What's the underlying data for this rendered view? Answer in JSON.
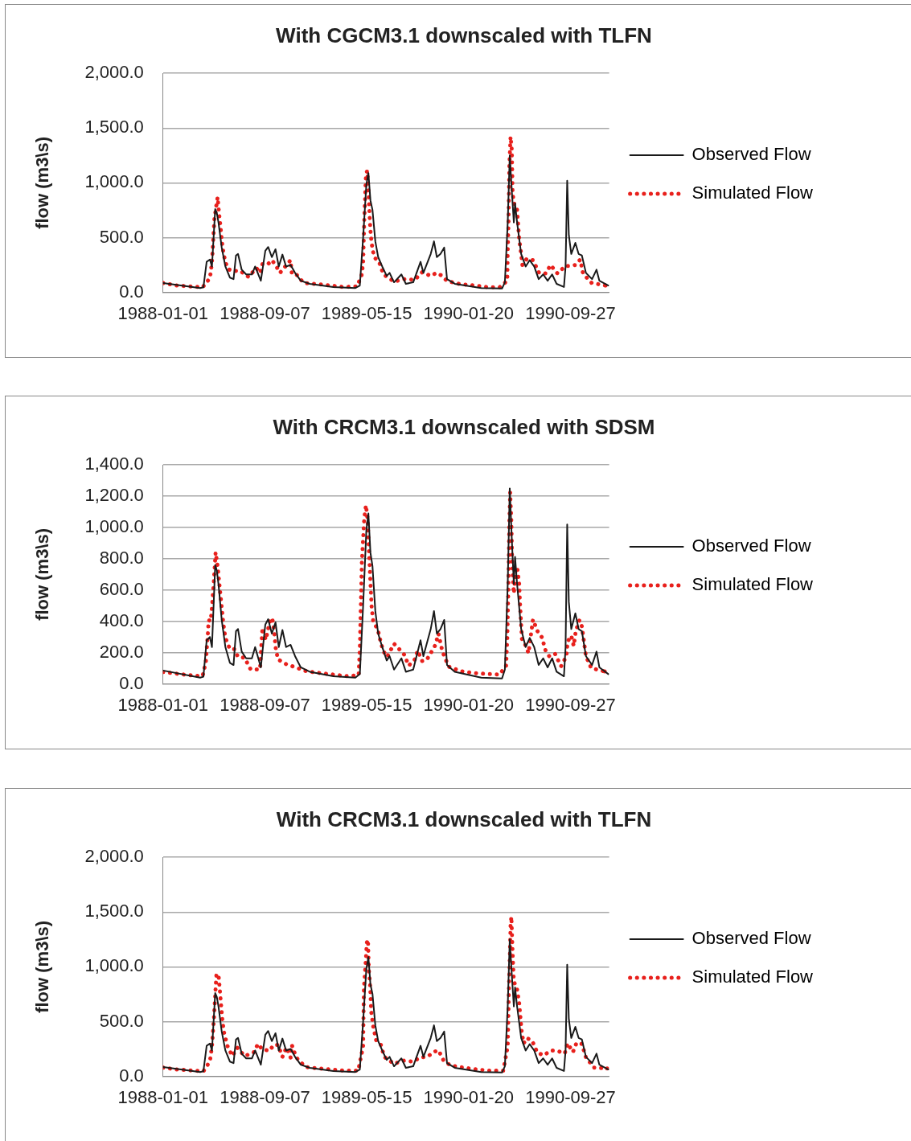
{
  "chart_data": [
    {
      "type": "line",
      "title": "With CGCM3.1 downscaled with TLFN",
      "ylabel": "flow (m3\\s)",
      "xlim": [
        "1988-01-01",
        "1990-12-31"
      ],
      "xticks": [
        "1988-01-01",
        "1988-09-07",
        "1989-05-15",
        "1990-01-20",
        "1990-09-27"
      ],
      "ylim": [
        0,
        2000
      ],
      "yticks": [
        {
          "value": 0,
          "label": "0.0"
        },
        {
          "value": 500,
          "label": "500.0"
        },
        {
          "value": 1000,
          "label": "1,000.0"
        },
        {
          "value": 1500,
          "label": "1,500.0"
        },
        {
          "value": 2000,
          "label": "2,000.0"
        }
      ],
      "grid": "y",
      "legend": "right",
      "marker": "none",
      "series": [
        {
          "name": "Observed Flow",
          "color": "#1a1a1a",
          "line_style": "solid",
          "x": [
            "1988-01-01",
            "1988-04-01",
            "1988-04-09",
            "1988-04-17",
            "1988-04-25",
            "1988-04-30",
            "1988-05-08",
            "1988-05-12",
            "1988-05-16",
            "1988-05-24",
            "1988-06-02",
            "1988-06-13",
            "1988-06-22",
            "1988-06-28",
            "1988-07-03",
            "1988-07-12",
            "1988-07-23",
            "1988-08-06",
            "1988-08-14",
            "1988-08-28",
            "1988-09-08",
            "1988-09-15",
            "1988-09-24",
            "1988-10-03",
            "1988-10-11",
            "1988-10-20",
            "1988-10-29",
            "1988-11-09",
            "1988-11-20",
            "1988-12-04",
            "1988-12-26",
            "1989-02-22",
            "1989-04-17",
            "1989-04-28",
            "1989-05-06",
            "1989-05-14",
            "1989-05-19",
            "1989-05-24",
            "1989-05-29",
            "1989-06-05",
            "1989-06-12",
            "1989-06-22",
            "1989-07-03",
            "1989-07-10",
            "1989-07-21",
            "1989-08-08",
            "1989-08-19",
            "1989-09-06",
            "1989-09-24",
            "1989-10-01",
            "1989-10-19",
            "1989-10-27",
            "1989-11-03",
            "1989-11-12",
            "1989-11-21",
            "1989-11-28",
            "1989-12-17",
            "1990-02-20",
            "1990-04-12",
            "1990-04-19",
            "1990-04-26",
            "1990-05-01",
            "1990-05-06",
            "1990-05-11",
            "1990-05-14",
            "1990-05-19",
            "1990-05-29",
            "1990-06-09",
            "1990-06-19",
            "1990-06-30",
            "1990-07-11",
            "1990-07-22",
            "1990-08-02",
            "1990-08-13",
            "1990-08-24",
            "1990-09-11",
            "1990-09-15",
            "1990-09-19",
            "1990-09-23",
            "1990-09-29",
            "1990-10-09",
            "1990-10-17",
            "1990-10-25",
            "1990-11-04",
            "1990-11-19",
            "1990-11-30",
            "1990-12-07",
            "1990-12-29"
          ],
          "values": [
            86,
            40,
            46,
            279,
            300,
            236,
            760,
            725,
            639,
            409,
            236,
            135,
            121,
            337,
            351,
            207,
            164,
            164,
            236,
            106,
            380,
            414,
            322,
            394,
            236,
            345,
            236,
            250,
            178,
            106,
            78,
            49,
            40,
            63,
            495,
            984,
            1090,
            840,
            754,
            466,
            322,
            236,
            150,
            178,
            92,
            164,
            78,
            92,
            279,
            178,
            351,
            466,
            322,
            351,
            409,
            121,
            78,
            40,
            35,
            92,
            639,
            1250,
            927,
            639,
            812,
            639,
            351,
            236,
            294,
            236,
            121,
            164,
            106,
            164,
            78,
            49,
            236,
            1019,
            524,
            351,
            452,
            351,
            337,
            178,
            121,
            207,
            106,
            63
          ]
        },
        {
          "name": "Simulated Flow",
          "color": "#e8201c",
          "line_style": "dotted",
          "x": [
            "1988-01-01",
            "1988-02-02",
            "1988-03-06",
            "1988-04-07",
            "1988-04-25",
            "1988-04-30",
            "1988-05-06",
            "1988-05-11",
            "1988-05-14",
            "1988-05-17",
            "1988-05-21",
            "1988-05-24",
            "1988-05-29",
            "1988-06-07",
            "1988-06-20",
            "1988-07-07",
            "1988-07-29",
            "1988-08-17",
            "1988-08-26",
            "1988-09-01",
            "1988-09-14",
            "1988-09-24",
            "1988-10-03",
            "1988-10-14",
            "1988-10-27",
            "1988-11-09",
            "1988-11-12",
            "1988-11-21",
            "1988-12-11",
            "1989-01-13",
            "1989-02-15",
            "1989-03-19",
            "1989-04-21",
            "1989-05-02",
            "1989-05-06",
            "1989-05-09",
            "1989-05-13",
            "1989-05-16",
            "1989-05-19",
            "1989-05-22",
            "1989-05-24",
            "1989-05-27",
            "1989-06-02",
            "1989-06-14",
            "1989-06-25",
            "1989-07-21",
            "1989-08-15",
            "1989-09-10",
            "1989-09-28",
            "1989-10-19",
            "1989-11-02",
            "1989-11-14",
            "1989-11-28",
            "1989-12-31",
            "1990-02-02",
            "1990-03-05",
            "1990-04-06",
            "1990-04-25",
            "1990-04-26",
            "1990-04-28",
            "1990-04-30",
            "1990-05-03",
            "1990-05-06",
            "1990-05-08",
            "1990-05-13",
            "1990-05-19",
            "1990-05-24",
            "1990-05-29",
            "1990-06-01",
            "1990-06-12",
            "1990-06-27",
            "1990-07-12",
            "1990-07-29",
            "1990-08-09",
            "1990-08-26",
            "1990-09-15",
            "1990-09-26",
            "1990-10-09",
            "1990-10-21",
            "1990-10-28",
            "1990-11-18",
            "1990-12-22"
          ],
          "values": [
            86,
            63,
            55,
            46,
            130,
            271,
            668,
            797,
            869,
            734,
            601,
            472,
            342,
            216,
            193,
            199,
            141,
            222,
            178,
            259,
            256,
            294,
            250,
            178,
            236,
            294,
            173,
            173,
            86,
            75,
            63,
            49,
            55,
            150,
            265,
            668,
            1071,
            1111,
            941,
            697,
            567,
            446,
            322,
            279,
            164,
            98,
            121,
            115,
            184,
            150,
            178,
            155,
            104,
            75,
            63,
            49,
            46,
            106,
            380,
            639,
            1157,
            1422,
            1301,
            898,
            783,
            754,
            495,
            351,
            250,
            308,
            294,
            178,
            173,
            250,
            173,
            242,
            242,
            250,
            299,
            170,
            86,
            63
          ]
        }
      ]
    },
    {
      "type": "line",
      "title": "With CRCM3.1 downscaled with SDSM",
      "ylabel": "flow (m3\\s)",
      "xlim": [
        "1988-01-01",
        "1990-12-31"
      ],
      "xticks": [
        "1988-01-01",
        "1988-09-07",
        "1989-05-15",
        "1990-01-20",
        "1990-09-27"
      ],
      "ylim": [
        0,
        1400
      ],
      "yticks": [
        {
          "value": 0,
          "label": "0.0"
        },
        {
          "value": 200,
          "label": "200.0"
        },
        {
          "value": 400,
          "label": "400.0"
        },
        {
          "value": 600,
          "label": "600.0"
        },
        {
          "value": 800,
          "label": "800.0"
        },
        {
          "value": 1000,
          "label": "1,000.0"
        },
        {
          "value": 1200,
          "label": "1,200.0"
        },
        {
          "value": 1400,
          "label": "1,400.0"
        }
      ],
      "grid": "y",
      "legend": "right",
      "marker": "none",
      "series": [
        {
          "name": "Observed Flow",
          "color": "#1a1a1a",
          "line_style": "solid",
          "x": [
            "1988-01-01",
            "1988-04-01",
            "1988-04-09",
            "1988-04-17",
            "1988-04-25",
            "1988-04-30",
            "1988-05-08",
            "1988-05-12",
            "1988-05-16",
            "1988-05-24",
            "1988-06-02",
            "1988-06-13",
            "1988-06-22",
            "1988-06-28",
            "1988-07-03",
            "1988-07-12",
            "1988-07-23",
            "1988-08-06",
            "1988-08-14",
            "1988-08-28",
            "1988-09-08",
            "1988-09-15",
            "1988-09-24",
            "1988-10-03",
            "1988-10-11",
            "1988-10-20",
            "1988-10-29",
            "1988-11-09",
            "1988-11-20",
            "1988-12-04",
            "1988-12-26",
            "1989-02-22",
            "1989-04-17",
            "1989-04-28",
            "1989-05-06",
            "1989-05-14",
            "1989-05-19",
            "1989-05-24",
            "1989-05-29",
            "1989-06-05",
            "1989-06-12",
            "1989-06-22",
            "1989-07-03",
            "1989-07-10",
            "1989-07-21",
            "1989-08-08",
            "1989-08-19",
            "1989-09-06",
            "1989-09-24",
            "1989-10-01",
            "1989-10-19",
            "1989-10-27",
            "1989-11-03",
            "1989-11-12",
            "1989-11-21",
            "1989-11-28",
            "1989-12-17",
            "1990-02-20",
            "1990-04-12",
            "1990-04-19",
            "1990-04-26",
            "1990-05-01",
            "1990-05-06",
            "1990-05-11",
            "1990-05-14",
            "1990-05-19",
            "1990-05-29",
            "1990-06-09",
            "1990-06-19",
            "1990-06-30",
            "1990-07-11",
            "1990-07-22",
            "1990-08-02",
            "1990-08-13",
            "1990-08-24",
            "1990-09-11",
            "1990-09-15",
            "1990-09-19",
            "1990-09-23",
            "1990-09-29",
            "1990-10-09",
            "1990-10-17",
            "1990-10-25",
            "1990-11-04",
            "1990-11-19",
            "1990-11-30",
            "1990-12-07",
            "1990-12-29"
          ],
          "values": [
            86,
            40,
            46,
            279,
            300,
            236,
            760,
            725,
            639,
            409,
            236,
            135,
            121,
            337,
            351,
            207,
            164,
            164,
            236,
            106,
            380,
            414,
            322,
            394,
            236,
            345,
            236,
            250,
            178,
            106,
            78,
            49,
            40,
            63,
            495,
            984,
            1090,
            840,
            754,
            466,
            322,
            236,
            150,
            178,
            92,
            164,
            78,
            92,
            279,
            178,
            351,
            466,
            322,
            351,
            409,
            121,
            78,
            40,
            35,
            92,
            639,
            1250,
            927,
            639,
            812,
            639,
            351,
            236,
            294,
            236,
            121,
            164,
            106,
            164,
            78,
            49,
            236,
            1019,
            524,
            351,
            452,
            351,
            337,
            178,
            121,
            207,
            106,
            63
          ]
        },
        {
          "name": "Simulated Flow",
          "color": "#e8201c",
          "line_style": "dotted",
          "x": [
            "1988-01-01",
            "1988-02-02",
            "1988-03-06",
            "1988-04-07",
            "1988-04-15",
            "1988-04-20",
            "1988-04-22",
            "1988-04-27",
            "1988-04-30",
            "1988-05-05",
            "1988-05-09",
            "1988-05-14",
            "1988-05-21",
            "1988-05-28",
            "1988-06-02",
            "1988-06-13",
            "1988-06-24",
            "1988-07-03",
            "1988-07-19",
            "1988-08-03",
            "1988-08-26",
            "1988-08-30",
            "1988-09-01",
            "1988-09-09",
            "1988-09-19",
            "1988-09-25",
            "1988-09-30",
            "1988-10-03",
            "1988-10-09",
            "1988-10-29",
            "1988-11-20",
            "1988-12-19",
            "1989-01-20",
            "1989-02-22",
            "1989-03-26",
            "1989-04-25",
            "1989-04-28",
            "1989-05-03",
            "1989-05-09",
            "1989-05-13",
            "1989-05-17",
            "1989-05-22",
            "1989-05-27",
            "1989-05-31",
            "1989-06-11",
            "1989-06-17",
            "1989-06-24",
            "1989-07-04",
            "1989-07-21",
            "1989-08-01",
            "1989-08-15",
            "1989-08-26",
            "1989-09-10",
            "1989-09-17",
            "1989-09-28",
            "1989-10-09",
            "1989-10-19",
            "1989-10-30",
            "1989-11-07",
            "1989-11-14",
            "1989-11-19",
            "1989-12-02",
            "1989-12-31",
            "1990-02-02",
            "1990-03-05",
            "1990-04-06",
            "1990-04-22",
            "1990-04-25",
            "1990-04-28",
            "1990-04-30",
            "1990-05-02",
            "1990-05-05",
            "1990-05-07",
            "1990-05-11",
            "1990-05-14",
            "1990-05-19",
            "1990-05-24",
            "1990-05-27",
            "1990-05-31",
            "1990-06-07",
            "1990-06-16",
            "1990-06-27",
            "1990-07-08",
            "1990-07-19",
            "1990-07-28",
            "1990-08-06",
            "1990-08-20",
            "1990-09-04",
            "1990-09-17",
            "1990-09-20",
            "1990-09-29",
            "1990-10-05",
            "1990-10-10",
            "1990-10-19",
            "1990-10-25",
            "1990-10-30",
            "1990-11-04",
            "1990-11-17",
            "1990-12-20"
          ],
          "values": [
            76,
            66,
            56,
            50,
            141,
            324,
            408,
            402,
            489,
            670,
            841,
            750,
            565,
            384,
            294,
            223,
            223,
            173,
            167,
            93,
            93,
            278,
            358,
            282,
            398,
            422,
            332,
            237,
            157,
            127,
            107,
            80,
            70,
            60,
            50,
            56,
            227,
            780,
            1062,
            1142,
            1052,
            760,
            489,
            398,
            348,
            282,
            213,
            173,
            257,
            227,
            187,
            117,
            157,
            213,
            147,
            153,
            197,
            247,
            322,
            237,
            193,
            111,
            82,
            70,
            64,
            60,
            117,
            298,
            670,
            1032,
            1223,
            1032,
            760,
            579,
            670,
            750,
            640,
            469,
            288,
            257,
            197,
            412,
            338,
            298,
            213,
            177,
            193,
            113,
            177,
            271,
            308,
            243,
            338,
            408,
            368,
            273,
            177,
            101,
            80
          ]
        }
      ]
    },
    {
      "type": "line",
      "title": "With CRCM3.1 downscaled with TLFN",
      "ylabel": "flow (m3\\s)",
      "xlim": [
        "1988-01-01",
        "1990-12-31"
      ],
      "xticks": [
        "1988-01-01",
        "1988-09-07",
        "1989-05-15",
        "1990-01-20",
        "1990-09-27"
      ],
      "ylim": [
        0,
        2000
      ],
      "yticks": [
        {
          "value": 0,
          "label": "0.0"
        },
        {
          "value": 500,
          "label": "500.0"
        },
        {
          "value": 1000,
          "label": "1,000.0"
        },
        {
          "value": 1500,
          "label": "1,500.0"
        },
        {
          "value": 2000,
          "label": "2,000.0"
        }
      ],
      "grid": "y",
      "legend": "right",
      "marker": "none",
      "series": [
        {
          "name": "Observed Flow",
          "color": "#1a1a1a",
          "line_style": "solid",
          "x": [
            "1988-01-01",
            "1988-04-01",
            "1988-04-09",
            "1988-04-17",
            "1988-04-25",
            "1988-04-30",
            "1988-05-08",
            "1988-05-12",
            "1988-05-16",
            "1988-05-24",
            "1988-06-02",
            "1988-06-13",
            "1988-06-22",
            "1988-06-28",
            "1988-07-03",
            "1988-07-12",
            "1988-07-23",
            "1988-08-06",
            "1988-08-14",
            "1988-08-28",
            "1988-09-08",
            "1988-09-15",
            "1988-09-24",
            "1988-10-03",
            "1988-10-11",
            "1988-10-20",
            "1988-10-29",
            "1988-11-09",
            "1988-11-20",
            "1988-12-04",
            "1988-12-26",
            "1989-02-22",
            "1989-04-17",
            "1989-04-28",
            "1989-05-06",
            "1989-05-14",
            "1989-05-19",
            "1989-05-24",
            "1989-05-29",
            "1989-06-05",
            "1989-06-12",
            "1989-06-22",
            "1989-07-03",
            "1989-07-10",
            "1989-07-21",
            "1989-08-08",
            "1989-08-19",
            "1989-09-06",
            "1989-09-24",
            "1989-10-01",
            "1989-10-19",
            "1989-10-27",
            "1989-11-03",
            "1989-11-12",
            "1989-11-21",
            "1989-11-28",
            "1989-12-17",
            "1990-02-20",
            "1990-04-12",
            "1990-04-19",
            "1990-04-26",
            "1990-05-01",
            "1990-05-06",
            "1990-05-11",
            "1990-05-14",
            "1990-05-19",
            "1990-05-29",
            "1990-06-09",
            "1990-06-19",
            "1990-06-30",
            "1990-07-11",
            "1990-07-22",
            "1990-08-02",
            "1990-08-13",
            "1990-08-24",
            "1990-09-11",
            "1990-09-15",
            "1990-09-19",
            "1990-09-23",
            "1990-09-29",
            "1990-10-09",
            "1990-10-17",
            "1990-10-25",
            "1990-11-04",
            "1990-11-19",
            "1990-11-30",
            "1990-12-07",
            "1990-12-29"
          ],
          "values": [
            86,
            40,
            46,
            279,
            300,
            236,
            760,
            725,
            639,
            409,
            236,
            135,
            121,
            337,
            351,
            207,
            164,
            164,
            236,
            106,
            380,
            414,
            322,
            394,
            236,
            345,
            236,
            250,
            178,
            106,
            78,
            49,
            40,
            63,
            495,
            984,
            1090,
            840,
            754,
            466,
            322,
            236,
            150,
            178,
            92,
            164,
            78,
            92,
            279,
            178,
            351,
            466,
            322,
            351,
            409,
            121,
            78,
            40,
            35,
            92,
            639,
            1250,
            927,
            639,
            812,
            639,
            351,
            236,
            294,
            236,
            121,
            164,
            106,
            164,
            78,
            49,
            236,
            1019,
            524,
            351,
            452,
            351,
            337,
            178,
            121,
            207,
            106,
            63
          ]
        },
        {
          "name": "Simulated Flow",
          "color": "#e8201c",
          "line_style": "dotted",
          "x": [
            "1988-01-01",
            "1988-02-03",
            "1988-03-07",
            "1988-04-09",
            "1988-04-25",
            "1988-04-30",
            "1988-05-05",
            "1988-05-09",
            "1988-05-11",
            "1988-05-16",
            "1988-05-19",
            "1988-05-22",
            "1988-05-25",
            "1988-05-29",
            "1988-06-07",
            "1988-06-19",
            "1988-07-01",
            "1988-07-19",
            "1988-08-10",
            "1988-08-21",
            "1988-09-01",
            "1988-09-19",
            "1988-09-28",
            "1988-10-09",
            "1988-10-20",
            "1988-10-30",
            "1988-11-09",
            "1988-11-12",
            "1988-11-23",
            "1988-12-15",
            "1989-01-17",
            "1989-02-18",
            "1989-03-23",
            "1989-04-24",
            "1989-05-06",
            "1989-05-08",
            "1989-05-13",
            "1989-05-15",
            "1989-05-18",
            "1989-05-20",
            "1989-05-23",
            "1989-05-26",
            "1989-05-31",
            "1989-06-07",
            "1989-06-18",
            "1989-06-27",
            "1989-07-21",
            "1989-08-14",
            "1989-09-06",
            "1989-09-23",
            "1989-10-12",
            "1989-10-25",
            "1989-11-07",
            "1989-11-19",
            "1989-12-06",
            "1990-01-07",
            "1990-02-09",
            "1990-03-14",
            "1990-04-15",
            "1990-04-26",
            "1990-04-29",
            "1990-05-01",
            "1990-05-03",
            "1990-05-05",
            "1990-05-08",
            "1990-05-11",
            "1990-05-18",
            "1990-05-24",
            "1990-05-30",
            "1990-06-04",
            "1990-06-12",
            "1990-06-25",
            "1990-07-08",
            "1990-07-24",
            "1990-08-09",
            "1990-08-24",
            "1990-09-13",
            "1990-09-20",
            "1990-10-03",
            "1990-10-12",
            "1990-10-25",
            "1990-11-04",
            "1990-11-24",
            "1990-12-26"
          ],
          "values": [
            80,
            63,
            55,
            46,
            138,
            273,
            539,
            803,
            932,
            932,
            803,
            668,
            536,
            410,
            278,
            186,
            261,
            186,
            215,
            296,
            244,
            235,
            287,
            287,
            178,
            264,
            172,
            287,
            172,
            86,
            72,
            63,
            52,
            52,
            273,
            803,
            1076,
            1219,
            1248,
            975,
            846,
            588,
            453,
            330,
            296,
            178,
            115,
            143,
            135,
            172,
            181,
            221,
            238,
            149,
            100,
            80,
            63,
            52,
            52,
            273,
            803,
            1062,
            1383,
            1457,
            1119,
            861,
            818,
            674,
            416,
            301,
            350,
            324,
            215,
            192,
            235,
            235,
            209,
            301,
            221,
            307,
            296,
            172,
            80,
            72
          ]
        }
      ]
    }
  ]
}
